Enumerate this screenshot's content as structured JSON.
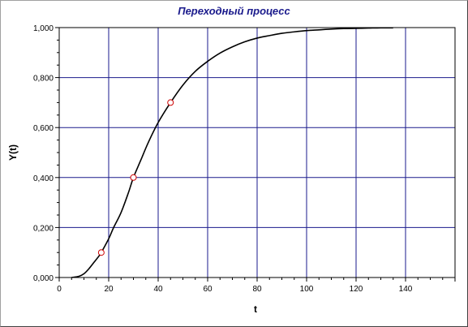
{
  "chart_data": {
    "type": "line",
    "title": "Переходный процесс",
    "xlabel": "t",
    "ylabel": "Y(t)",
    "xlim": [
      0,
      160
    ],
    "ylim": [
      0,
      1
    ],
    "x_ticks": [
      0,
      20,
      40,
      60,
      80,
      100,
      120,
      140
    ],
    "x_tick_labels": [
      "0",
      "20",
      "40",
      "60",
      "80",
      "100",
      "120",
      "140"
    ],
    "y_ticks": [
      0,
      0.2,
      0.4,
      0.6,
      0.8,
      1.0
    ],
    "y_tick_labels": [
      "0,000",
      "0,200",
      "0,400",
      "0,600",
      "0,800",
      "1,000"
    ],
    "grid": true,
    "colors": {
      "grid": "#1a1a8c",
      "line": "#000000",
      "marker_edge": "#cc0000",
      "title": "#1a1a8c"
    },
    "series": [
      {
        "x": [
          5,
          8,
          10,
          12,
          14,
          16,
          17,
          20,
          22,
          25,
          28,
          30,
          33,
          36,
          40,
          45,
          50,
          55,
          60,
          65,
          70,
          75,
          80,
          85,
          90,
          95,
          100,
          105,
          110,
          115,
          120,
          125,
          130,
          135
        ],
        "y": [
          0,
          0.005,
          0.015,
          0.035,
          0.06,
          0.085,
          0.1,
          0.155,
          0.2,
          0.26,
          0.34,
          0.4,
          0.47,
          0.54,
          0.62,
          0.7,
          0.77,
          0.825,
          0.865,
          0.898,
          0.923,
          0.943,
          0.958,
          0.968,
          0.977,
          0.983,
          0.988,
          0.991,
          0.994,
          0.996,
          0.997,
          0.998,
          0.999,
          0.999
        ]
      }
    ],
    "markers": [
      {
        "x": 17,
        "y": 0.1
      },
      {
        "x": 30,
        "y": 0.4
      },
      {
        "x": 45,
        "y": 0.7
      }
    ]
  }
}
